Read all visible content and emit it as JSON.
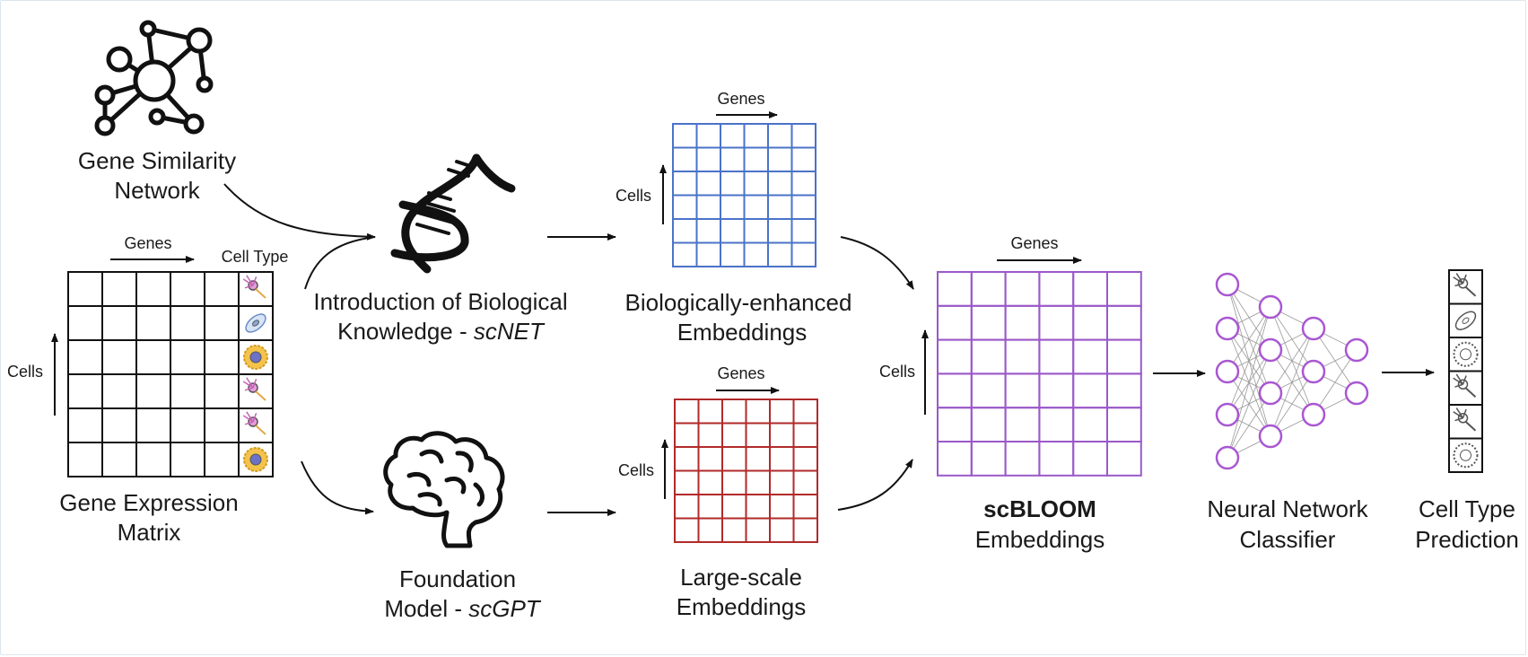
{
  "nodes": {
    "gene_similarity": {
      "line1": "Gene Similarity",
      "line2": "Network",
      "icon": "network-graph-icon"
    },
    "gene_expression": {
      "line1": "Gene Expression",
      "line2": "Matrix",
      "axis_x": "Genes",
      "axis_y": "Cells",
      "col_header": "Cell Type"
    },
    "scnet": {
      "line1": "Introduction of Biological",
      "line2_prefix": "Knowledge - ",
      "line2_italic": "scNET",
      "icon": "dna-icon"
    },
    "scgpt": {
      "line1": "Foundation",
      "line2_prefix": "Model - ",
      "line2_italic": "scGPT",
      "icon": "brain-icon"
    },
    "bio_embeddings": {
      "line1": "Biologically-enhanced",
      "line2": "Embeddings",
      "axis_x": "Genes",
      "axis_y": "Cells",
      "color": "#4a73c9"
    },
    "large_embeddings": {
      "line1": "Large-scale",
      "line2": "Embeddings",
      "axis_x": "Genes",
      "axis_y": "Cells",
      "color": "#b22a2a"
    },
    "scbloom": {
      "line1_bold": "scBLOOM",
      "line2": "Embeddings",
      "axis_x": "Genes",
      "axis_y": "Cells",
      "color": "#9b59c9"
    },
    "classifier": {
      "line1": "Neural Network",
      "line2": "Classifier",
      "node_color": "#a957d2"
    },
    "prediction": {
      "line1": "Cell Type",
      "line2": "Prediction"
    }
  },
  "cell_type_icons": [
    "neuron-icon",
    "epithelial-cell-icon",
    "immune-cell-icon",
    "neuron-icon",
    "neuron-icon",
    "immune-cell-icon"
  ],
  "prediction_icons": [
    "neuron-outline-icon",
    "epithelial-outline-icon",
    "immune-outline-icon",
    "neuron-outline-icon",
    "neuron-outline-icon",
    "immune-outline-icon"
  ]
}
